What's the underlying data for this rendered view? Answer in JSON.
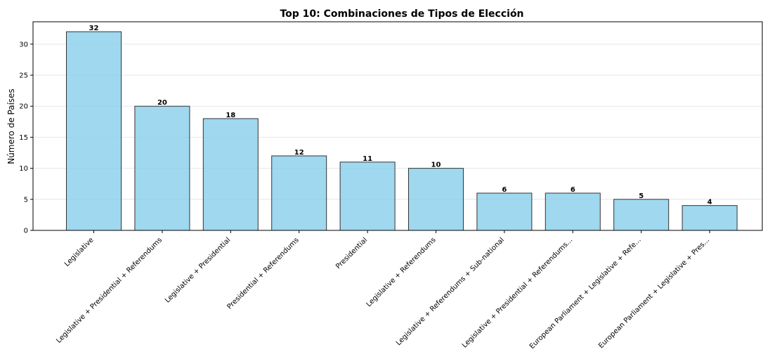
{
  "chart_data": {
    "type": "bar",
    "title": "Top 10: Combinaciones de Tipos de Elección",
    "xlabel": "",
    "ylabel": "Número de Países",
    "categories": [
      "Legislative",
      "Legislative + Presidential + Referendums",
      "Legislative + Presidential",
      "Presidential + Referendums",
      "Presidential",
      "Legislative + Referendums",
      "Legislative + Referendums + Sub-national",
      "Legislative + Presidential + Referendums...",
      "European Parliament + Legislative + Refe...",
      "European Parliament + Legislative + Pres..."
    ],
    "values": [
      32,
      20,
      18,
      12,
      11,
      10,
      6,
      6,
      5,
      4
    ],
    "data_labels": [
      "32",
      "20",
      "18",
      "12",
      "11",
      "10",
      "6",
      "6",
      "5",
      "4"
    ],
    "ylim": [
      0,
      33.6
    ],
    "yticks": [
      0,
      5,
      10,
      15,
      20,
      25,
      30
    ],
    "ytick_labels": [
      "0",
      "5",
      "10",
      "15",
      "20",
      "25",
      "30"
    ],
    "grid": "y-only",
    "legend": "none",
    "colors": {
      "bar_fill": "#87CEEB",
      "bar_stroke": "#333333",
      "grid": "#e6e6e6",
      "axis": "#000000"
    }
  }
}
